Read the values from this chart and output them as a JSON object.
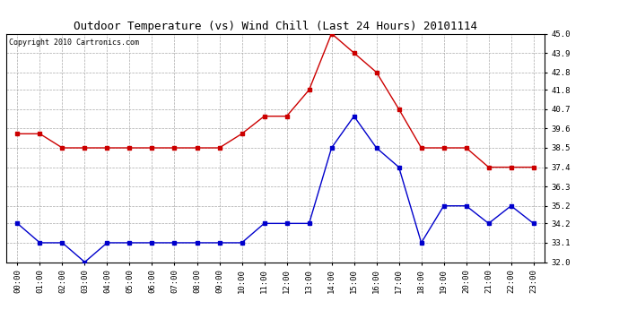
{
  "title": "Outdoor Temperature (vs) Wind Chill (Last 24 Hours) 20101114",
  "copyright": "Copyright 2010 Cartronics.com",
  "hours": [
    "00:00",
    "01:00",
    "02:00",
    "03:00",
    "04:00",
    "05:00",
    "06:00",
    "07:00",
    "08:00",
    "09:00",
    "10:00",
    "11:00",
    "12:00",
    "13:00",
    "14:00",
    "15:00",
    "16:00",
    "17:00",
    "18:00",
    "19:00",
    "20:00",
    "21:00",
    "22:00",
    "23:00"
  ],
  "temp_red": [
    39.3,
    39.3,
    38.5,
    38.5,
    38.5,
    38.5,
    38.5,
    38.5,
    38.5,
    38.5,
    39.3,
    40.3,
    40.3,
    41.8,
    45.0,
    43.9,
    42.8,
    40.7,
    38.5,
    38.5,
    38.5,
    37.4,
    37.4,
    37.4
  ],
  "wind_chill_blue": [
    34.2,
    33.1,
    33.1,
    32.0,
    33.1,
    33.1,
    33.1,
    33.1,
    33.1,
    33.1,
    33.1,
    34.2,
    34.2,
    34.2,
    38.5,
    40.3,
    38.5,
    37.4,
    33.1,
    35.2,
    35.2,
    34.2,
    35.2,
    34.2
  ],
  "red_color": "#cc0000",
  "blue_color": "#0000cc",
  "bg_color": "#ffffff",
  "plot_bg_color": "#ffffff",
  "grid_color": "#aaaaaa",
  "ylim": [
    32.0,
    45.0
  ],
  "yticks": [
    32.0,
    33.1,
    34.2,
    35.2,
    36.3,
    37.4,
    38.5,
    39.6,
    40.7,
    41.8,
    42.8,
    43.9,
    45.0
  ],
  "title_fontsize": 9,
  "copyright_fontsize": 6,
  "tick_fontsize": 6.5,
  "marker": "s",
  "markersize": 2.5,
  "linewidth": 1.0
}
